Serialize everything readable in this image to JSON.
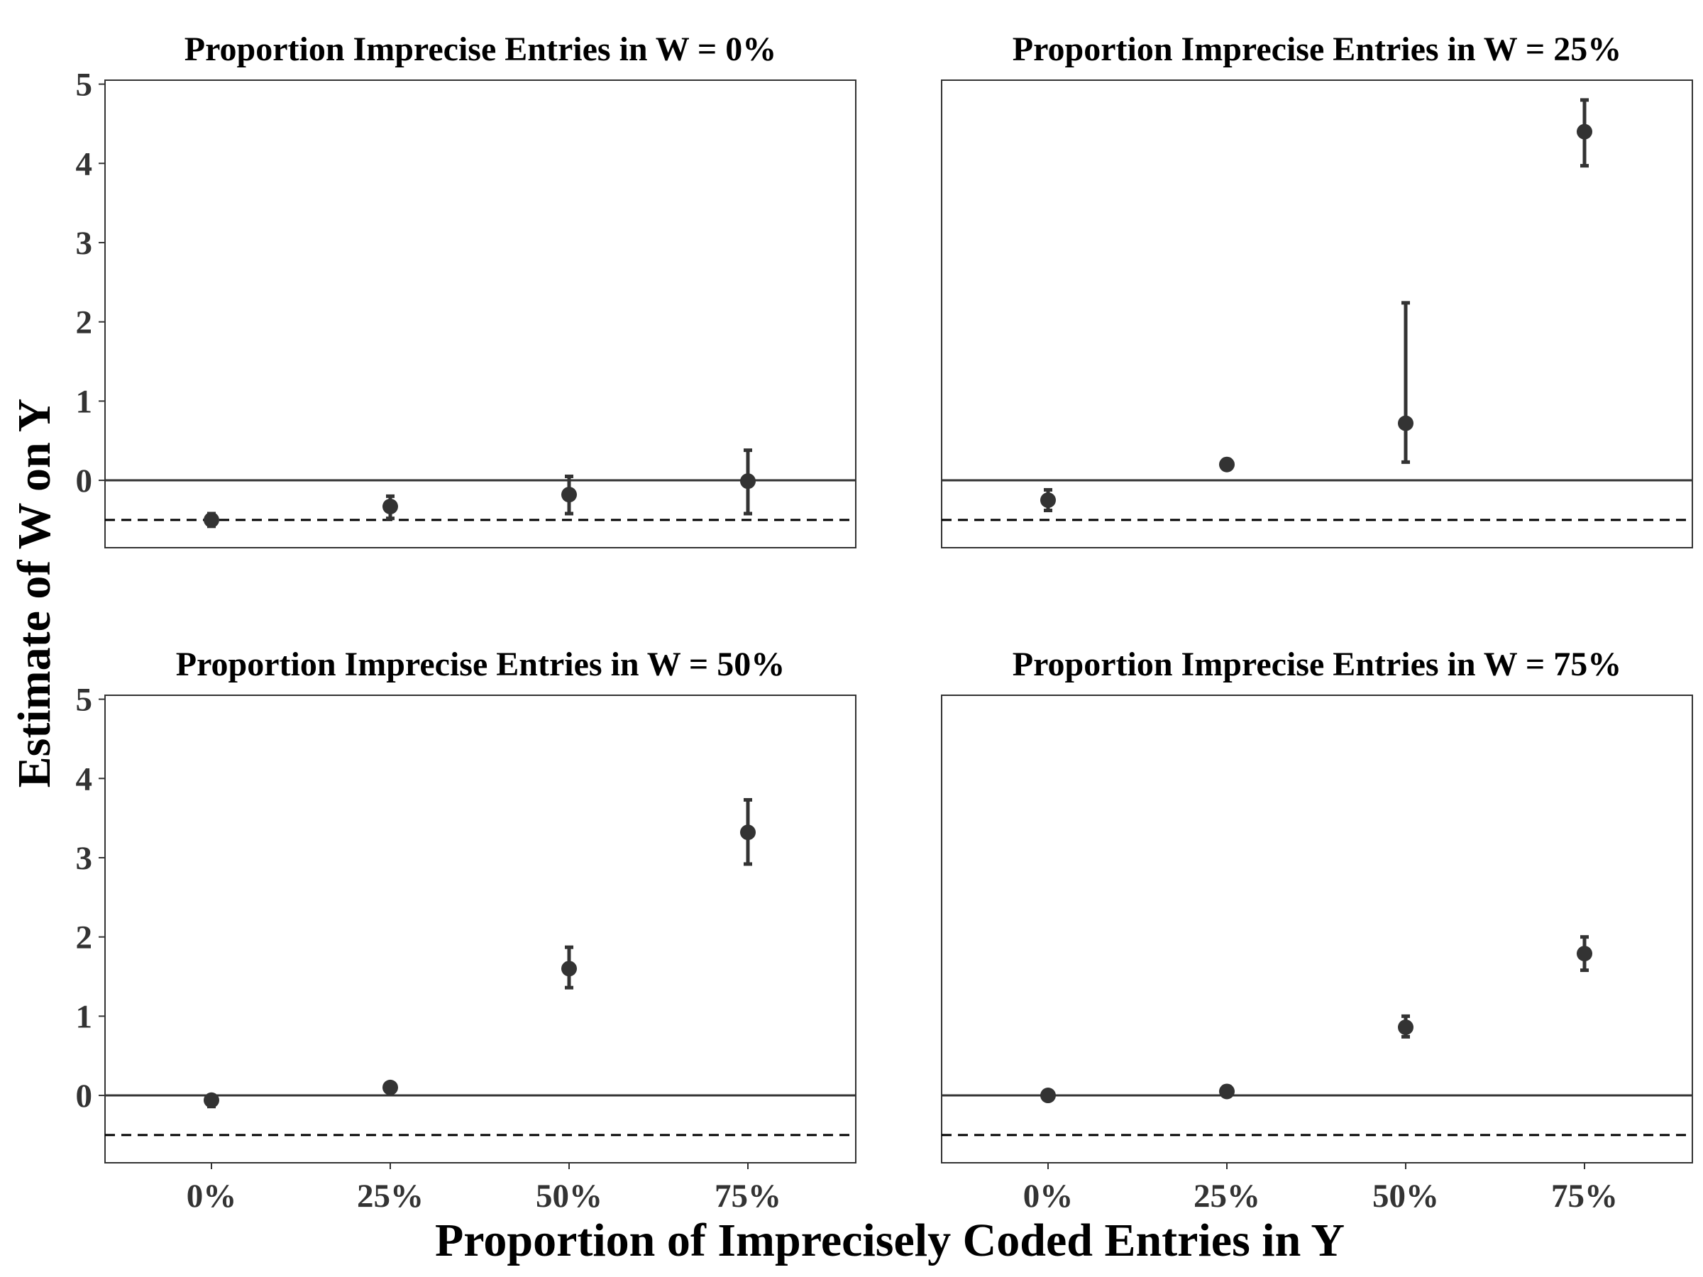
{
  "chart_data": {
    "type": "scatter",
    "xlabel": "Proportion of Imprecisely Coded Entries in Y",
    "ylabel": "Estimate of W on Y",
    "x_categories": [
      "0%",
      "25%",
      "50%",
      "75%"
    ],
    "y_ticks": [
      0,
      1,
      2,
      3,
      4,
      5
    ],
    "ylim": [
      -0.85,
      5.05
    ],
    "grid": false,
    "reference_lines": {
      "solid": 0,
      "dashed": -0.5
    },
    "colors": {
      "points": "#333333",
      "reference_lines": "#333333",
      "panel_border": "#333333"
    },
    "panels": [
      {
        "title": "Proportion Imprecise Entries in W = 0%",
        "points": [
          {
            "x": "0%",
            "y": -0.5,
            "lower": -0.58,
            "upper": -0.42
          },
          {
            "x": "25%",
            "y": -0.33,
            "lower": -0.48,
            "upper": -0.2
          },
          {
            "x": "50%",
            "y": -0.18,
            "lower": -0.42,
            "upper": 0.05
          },
          {
            "x": "75%",
            "y": -0.01,
            "lower": -0.42,
            "upper": 0.38
          }
        ]
      },
      {
        "title": "Proportion Imprecise Entries in W = 25%",
        "points": [
          {
            "x": "0%",
            "y": -0.25,
            "lower": -0.38,
            "upper": -0.12
          },
          {
            "x": "25%",
            "y": 0.2,
            "lower": 0.2,
            "upper": 0.2
          },
          {
            "x": "50%",
            "y": 0.72,
            "lower": 0.23,
            "upper": 2.24
          },
          {
            "x": "75%",
            "y": 4.4,
            "lower": 3.97,
            "upper": 4.8
          }
        ]
      },
      {
        "title": "Proportion Imprecise Entries in W = 50%",
        "points": [
          {
            "x": "0%",
            "y": -0.06,
            "lower": -0.14,
            "upper": 0.0
          },
          {
            "x": "25%",
            "y": 0.1,
            "lower": 0.1,
            "upper": 0.1
          },
          {
            "x": "50%",
            "y": 1.6,
            "lower": 1.36,
            "upper": 1.87
          },
          {
            "x": "75%",
            "y": 3.32,
            "lower": 2.92,
            "upper": 3.73
          }
        ]
      },
      {
        "title": "Proportion Imprecise Entries in W = 75%",
        "points": [
          {
            "x": "0%",
            "y": 0.0,
            "lower": 0.0,
            "upper": 0.0
          },
          {
            "x": "25%",
            "y": 0.05,
            "lower": 0.05,
            "upper": 0.05
          },
          {
            "x": "50%",
            "y": 0.86,
            "lower": 0.74,
            "upper": 1.0
          },
          {
            "x": "75%",
            "y": 1.79,
            "lower": 1.58,
            "upper": 2.0
          }
        ]
      }
    ]
  }
}
